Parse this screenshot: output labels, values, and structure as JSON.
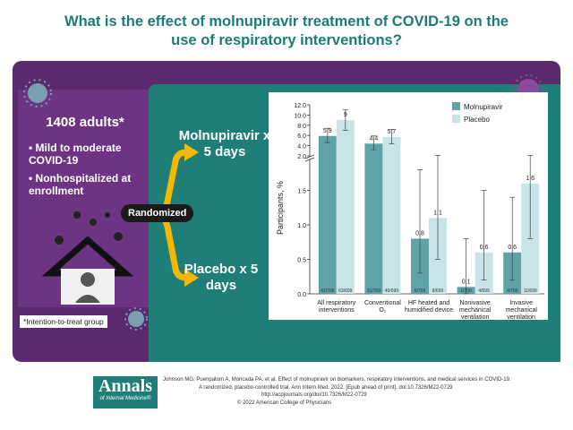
{
  "header": {
    "title": "What is the effect of molnupiravir treatment of COVID-19 on the use of respiratory interventions?"
  },
  "population": {
    "count": "1408 adults*",
    "bullets": [
      "Mild to moderate COVID-19",
      "Nonhospitalized at enrollment"
    ],
    "note": "*Intention-to-treat group"
  },
  "arms": {
    "randomized": "Randomized",
    "labels": [
      "Molnupiravir x 5 days",
      "Placebo x 5 days"
    ]
  },
  "chart_data": {
    "type": "bar",
    "ylabel": "Participants, %",
    "categories": [
      [
        "All respiratory",
        "interventions"
      ],
      [
        "Conventional",
        "O₂"
      ],
      [
        "HF heated and",
        "humidified device"
      ],
      [
        "Nonivasive",
        "mechanical",
        "ventilation"
      ],
      [
        "Invasive",
        "mechanical",
        "ventilation"
      ]
    ],
    "series": [
      {
        "name": "Molnupiravir",
        "color": "#5fa3a8",
        "values": [
          5.9,
          4.4,
          0.8,
          0.1,
          0.6
        ],
        "ci_low": [
          4.6,
          3.2,
          0.3,
          0.0,
          0.2
        ],
        "ci_high": [
          7.4,
          5.9,
          1.8,
          0.8,
          1.4
        ],
        "counts": [
          "42/709",
          "31/709",
          "6/709",
          "1/709",
          "4/709"
        ]
      },
      {
        "name": "Placebo",
        "color": "#c9e4e6",
        "values": [
          9.0,
          5.7,
          1.1,
          0.6,
          1.6
        ],
        "ci_low": [
          7.0,
          4.4,
          0.5,
          0.2,
          0.8
        ],
        "ci_high": [
          11.0,
          7.2,
          2.1,
          1.5,
          2.1
        ],
        "counts": [
          "63/699",
          "40/699",
          "8/699",
          "4/699",
          "11/699"
        ]
      }
    ],
    "ylim": [
      0,
      12
    ],
    "ybreak": 2,
    "yticks": [
      {
        "value": 0,
        "label": "0.0"
      },
      0.5,
      {
        "value": 1,
        "label": "1.0"
      },
      1.5,
      {
        "value": 2,
        "label": "2.0"
      },
      {
        "value": 4,
        "label": "4.0"
      },
      {
        "value": 6,
        "label": "6.0"
      },
      {
        "value": 8,
        "label": "8.0"
      },
      {
        "value": 10,
        "label": "10.0"
      },
      {
        "value": 12,
        "label": "12.0"
      }
    ],
    "legend": "top-right"
  },
  "footer": {
    "logo": [
      "Annals",
      "of Internal Medicine®"
    ],
    "citation": [
      "Johnson MG, Puenpatom A, Moncada PA, et al. Effect of molnupiravir on biomarkers, respiratory interventions, and medical services in COVID-19.",
      "A randomized, placebo-controlled trial. Ann Intern Med. 2022. [Epub ahead of print]. doi:10.7326/M22-0729",
      "http://acpjournals.org/doi/10.7326/M22-0729"
    ],
    "copyright": "© 2022 American College of Physicians"
  }
}
